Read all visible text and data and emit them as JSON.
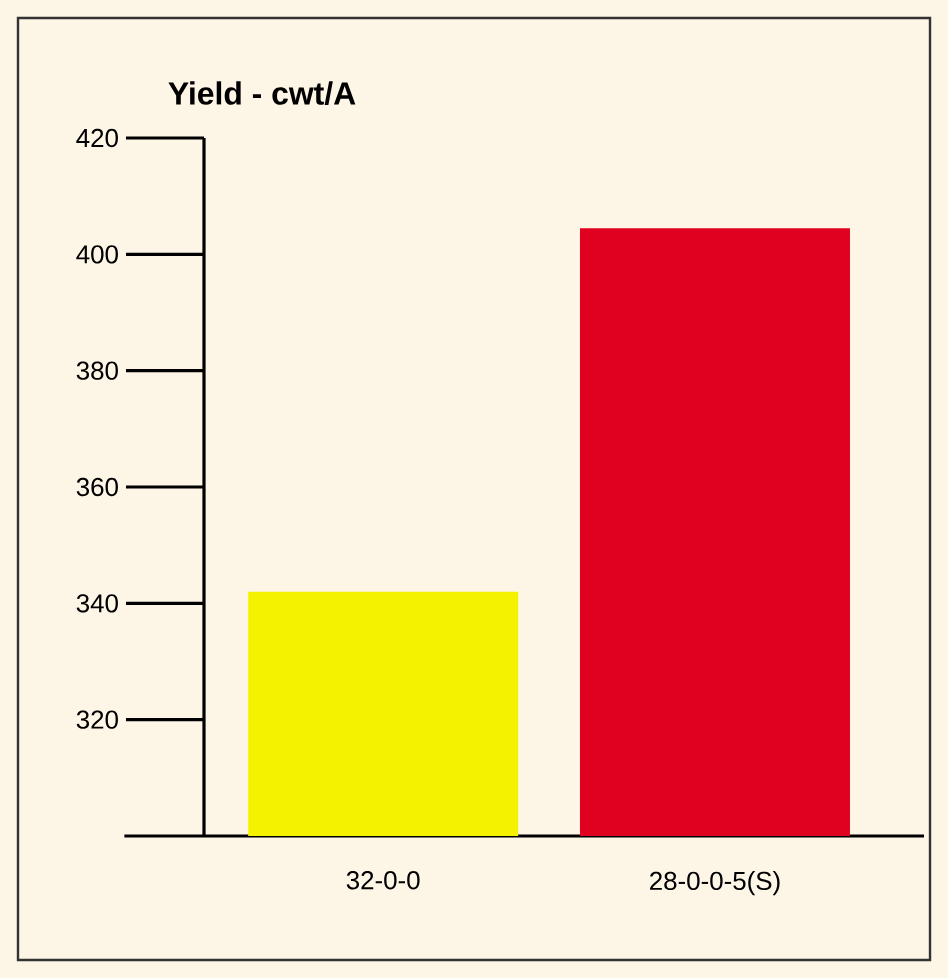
{
  "chart_data": {
    "type": "bar",
    "title": "Yield - cwt/A",
    "categories": [
      "32-0-0",
      "28-0-0-5(S)"
    ],
    "values": [
      342,
      404.5
    ],
    "colors": [
      "#f5f200",
      "#e00020"
    ],
    "ylim": [
      300,
      420
    ],
    "yticks": [
      320,
      340,
      360,
      380,
      400,
      420
    ]
  }
}
